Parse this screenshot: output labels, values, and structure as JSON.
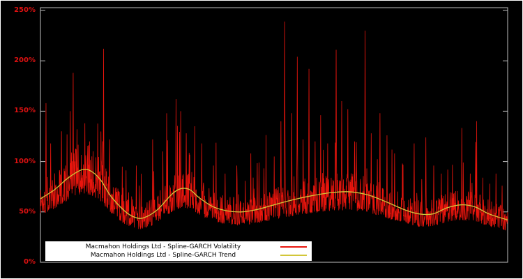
{
  "chart": {
    "background": "#000000",
    "frame_border": "#ffffff",
    "axis_color": "#c0c0c0",
    "ylabel_color": "#dd1111",
    "legend": {
      "position": "bottom-left-inside",
      "background": "#ffffff",
      "items": [
        {
          "label": "Macmahon Holdings Ltd - Spline-GARCH Volatility",
          "color": "#e8150d"
        },
        {
          "label": "Macmahon Holdings Ltd - Spline-GARCH Trend",
          "color": "#d2c639"
        }
      ]
    }
  },
  "chart_data": {
    "type": "line",
    "title": "",
    "xlabel": "",
    "ylabel": "",
    "ylim": [
      0,
      250
    ],
    "yticks": [
      {
        "value": 0,
        "label": "0%"
      },
      {
        "value": 50,
        "label": "50%"
      },
      {
        "value": 100,
        "label": "100%"
      },
      {
        "value": 150,
        "label": "150%"
      },
      {
        "value": 200,
        "label": "200%"
      },
      {
        "value": 250,
        "label": "250%"
      }
    ],
    "grid": false,
    "series": [
      {
        "name": "Macmahon Holdings Ltd - Spline-GARCH Volatility",
        "color": "#e8150d",
        "style": "noisy-line",
        "n": 1600,
        "seed": 1337,
        "noise": {
          "base_mult_min": 0.74,
          "jitter": 0.55,
          "spike_prob": 0.05,
          "spike_mult": 0.85
        },
        "spikes": [
          [
            0.012,
            158
          ],
          [
            0.022,
            118
          ],
          [
            0.045,
            130
          ],
          [
            0.057,
            127
          ],
          [
            0.064,
            150
          ],
          [
            0.07,
            188
          ],
          [
            0.078,
            132
          ],
          [
            0.095,
            138
          ],
          [
            0.105,
            120
          ],
          [
            0.135,
            212
          ],
          [
            0.148,
            122
          ],
          [
            0.175,
            95
          ],
          [
            0.205,
            96
          ],
          [
            0.24,
            122
          ],
          [
            0.262,
            110
          ],
          [
            0.29,
            162
          ],
          [
            0.3,
            150
          ],
          [
            0.312,
            128
          ],
          [
            0.33,
            135
          ],
          [
            0.345,
            118
          ],
          [
            0.37,
            96
          ],
          [
            0.395,
            88
          ],
          [
            0.42,
            96
          ],
          [
            0.45,
            108
          ],
          [
            0.468,
            99
          ],
          [
            0.5,
            105
          ],
          [
            0.515,
            140
          ],
          [
            0.523,
            239
          ],
          [
            0.538,
            148
          ],
          [
            0.55,
            204
          ],
          [
            0.562,
            122
          ],
          [
            0.575,
            192
          ],
          [
            0.588,
            120
          ],
          [
            0.6,
            146
          ],
          [
            0.615,
            118
          ],
          [
            0.633,
            211
          ],
          [
            0.645,
            160
          ],
          [
            0.658,
            152
          ],
          [
            0.672,
            120
          ],
          [
            0.695,
            230
          ],
          [
            0.708,
            128
          ],
          [
            0.727,
            148
          ],
          [
            0.742,
            126
          ],
          [
            0.758,
            108
          ],
          [
            0.775,
            98
          ],
          [
            0.8,
            118
          ],
          [
            0.825,
            124
          ],
          [
            0.842,
            96
          ],
          [
            0.858,
            88
          ],
          [
            0.872,
            92
          ],
          [
            0.905,
            99
          ],
          [
            0.92,
            88
          ],
          [
            0.932,
            94
          ],
          [
            0.947,
            84
          ],
          [
            0.962,
            78
          ],
          [
            0.975,
            88
          ],
          [
            0.988,
            76
          ]
        ]
      },
      {
        "name": "Macmahon Holdings Ltd - Spline-GARCH Trend",
        "color": "#d2c639",
        "style": "smooth-line",
        "points": [
          [
            0.0,
            63
          ],
          [
            0.03,
            72
          ],
          [
            0.06,
            84
          ],
          [
            0.09,
            92
          ],
          [
            0.11,
            90
          ],
          [
            0.13,
            81
          ],
          [
            0.15,
            66
          ],
          [
            0.18,
            51
          ],
          [
            0.2,
            45
          ],
          [
            0.22,
            44
          ],
          [
            0.25,
            52
          ],
          [
            0.28,
            67
          ],
          [
            0.3,
            73
          ],
          [
            0.32,
            72
          ],
          [
            0.34,
            64
          ],
          [
            0.37,
            55
          ],
          [
            0.4,
            51
          ],
          [
            0.43,
            50
          ],
          [
            0.46,
            52
          ],
          [
            0.5,
            57
          ],
          [
            0.54,
            62
          ],
          [
            0.58,
            66
          ],
          [
            0.62,
            69
          ],
          [
            0.66,
            70
          ],
          [
            0.7,
            67
          ],
          [
            0.74,
            60
          ],
          [
            0.78,
            52
          ],
          [
            0.81,
            48
          ],
          [
            0.84,
            48
          ],
          [
            0.87,
            54
          ],
          [
            0.9,
            57
          ],
          [
            0.93,
            55
          ],
          [
            0.96,
            48
          ],
          [
            1.0,
            42
          ]
        ]
      }
    ]
  }
}
